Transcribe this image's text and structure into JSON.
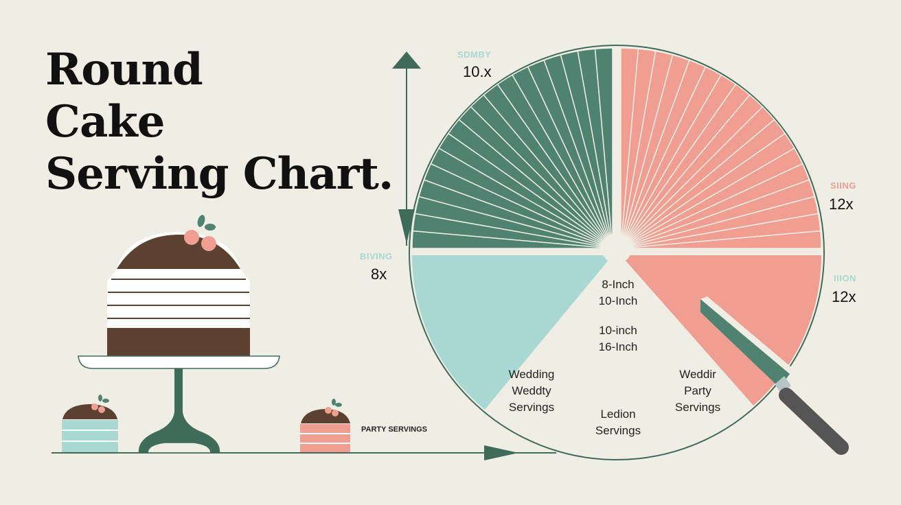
{
  "title": {
    "line1": "Round",
    "line2": "Cake",
    "line3": "Serving Chart."
  },
  "markers": [
    {
      "tag": "SDMBY",
      "value": "10.x",
      "tag_color": "#a9d8d3"
    },
    {
      "tag": "SIING",
      "value": "12x",
      "tag_color": "#ef9e91"
    },
    {
      "tag": "BIVING",
      "value": "8x",
      "tag_color": "#a9d8d3"
    },
    {
      "tag": "IIION",
      "value": "12x",
      "tag_color": "#a9d8d3"
    }
  ],
  "center_labels": {
    "a1": "8-Inch",
    "a2": "10-Inch",
    "b1": "10-inch",
    "b2": "16-Inch"
  },
  "segment_labels": {
    "left": [
      "Wedding",
      "Weddty",
      "Servings"
    ],
    "right": [
      "Weddir",
      "Party",
      "Servings"
    ],
    "bottom": [
      "Ledion",
      "Servings"
    ]
  },
  "party_label": "PARTY SERVINGS",
  "colors": {
    "background": "#f0eee4",
    "green": "#4f8270",
    "pink": "#ef9e91",
    "mint": "#a9d8d3",
    "chocolate": "#5c4130",
    "axis": "#3e6b5a",
    "knife_handle": "#555555"
  }
}
